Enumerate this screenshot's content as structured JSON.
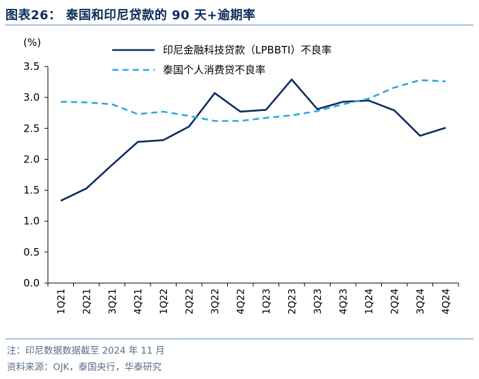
{
  "title": "图表26：  泰国和印尼贷款的 90 天+逾期率",
  "footnote": "注：印尼数据数据截至 2024 年 11 月",
  "source": "资料来源：OJK，泰国央行，华泰研究",
  "chart_data": {
    "type": "line",
    "title": "泰国和印尼贷款的 90 天+逾期率",
    "ylabel": "(%)",
    "xlabel": "",
    "ylim": [
      0.0,
      3.5
    ],
    "yticks": [
      "0.0",
      "0.5",
      "1.0",
      "1.5",
      "2.0",
      "2.5",
      "3.0",
      "3.5"
    ],
    "categories": [
      "1Q21",
      "2Q21",
      "3Q21",
      "4Q21",
      "1Q22",
      "2Q22",
      "3Q22",
      "4Q22",
      "1Q23",
      "2Q23",
      "3Q23",
      "4Q23",
      "1Q24",
      "2Q24",
      "3Q24",
      "4Q24"
    ],
    "legend_position": "top",
    "series": [
      {
        "name": "印尼金融科技贷款（LPBBTI）不良率",
        "style": "solid",
        "color": "#0b2c5c",
        "values": [
          1.33,
          1.53,
          1.91,
          2.28,
          2.31,
          2.53,
          3.07,
          2.77,
          2.8,
          3.29,
          2.81,
          2.93,
          2.95,
          2.79,
          2.38,
          2.51
        ]
      },
      {
        "name": "泰国个人消费贷不良率",
        "style": "dashed",
        "color": "#2aa8df",
        "values": [
          2.93,
          2.92,
          2.89,
          2.73,
          2.77,
          2.7,
          2.62,
          2.62,
          2.67,
          2.71,
          2.78,
          2.89,
          2.98,
          3.16,
          3.28,
          3.26
        ]
      }
    ]
  }
}
